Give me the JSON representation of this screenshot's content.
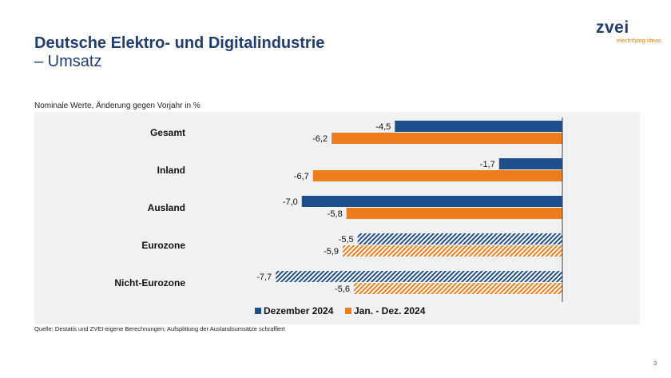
{
  "header": {
    "title_line1": "Deutsche Elektro- und Digitalindustrie",
    "title_line2": "– Umsatz"
  },
  "logo": {
    "word": "zvei",
    "tagline": "electrifying ideas"
  },
  "footer": {
    "source": "Quelle: Destatis und ZVEI-eigene Berechnungen; Aufsplittung der Auslandsumsätze schraffiert",
    "page_number": "3"
  },
  "colors": {
    "dec": "#1f4e8c",
    "year": "#ed7d1a"
  },
  "chart_data": {
    "type": "bar",
    "orientation": "horizontal",
    "subtitle": "Nominale Werte, Änderung gegen Vorjahr in %",
    "categories": [
      "Gesamt",
      "Inland",
      "Ausland",
      "Eurozone",
      "Nicht-Eurozone"
    ],
    "hatched_categories": [
      "Eurozone",
      "Nicht-Eurozone"
    ],
    "series": [
      {
        "name": "Dezember 2024",
        "values": [
          -4.5,
          -1.7,
          -7.0,
          -5.5,
          -7.7
        ],
        "labels": [
          "-4,5",
          "-1,7",
          "-7,0",
          "-5,5",
          "-7,7"
        ]
      },
      {
        "name": "Jan. - Dez. 2024",
        "values": [
          -6.2,
          -6.7,
          -5.8,
          -5.9,
          -5.6
        ],
        "labels": [
          "-6,2",
          "-6,7",
          "-5,8",
          "-5,9",
          "-5,6"
        ]
      }
    ],
    "xlim": [
      -9,
      0
    ],
    "legend": "bottom"
  }
}
